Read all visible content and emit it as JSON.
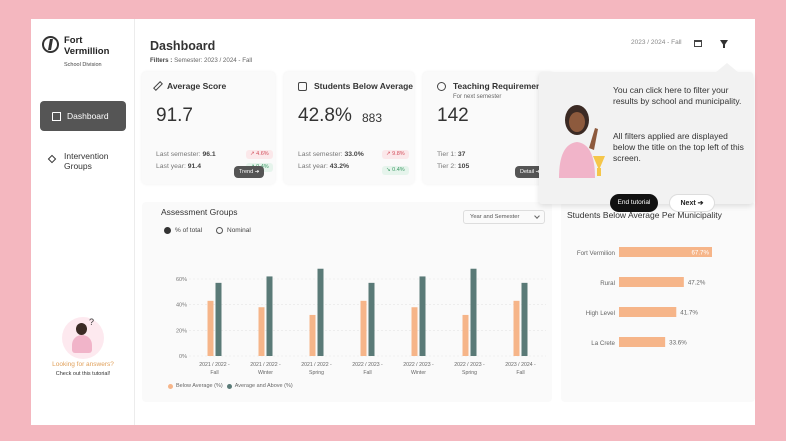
{
  "sidebar": {
    "brand_name": "Fort Vermillion",
    "brand_sub": "School Division",
    "items": [
      {
        "label": "Dashboard",
        "icon": "home-icon",
        "active": true
      },
      {
        "label": "Intervention Groups",
        "icon": "diamond-icon",
        "active": false
      }
    ],
    "help_title": "Looking for answers?",
    "help_sub": "Check out this tutorial!"
  },
  "header": {
    "title": "Dashboard",
    "filters_label": "Filters :",
    "filters_value": "Semester: 2023 / 2024 - Fall",
    "period": "2023 / 2024 - Fall"
  },
  "cards": {
    "avg": {
      "title": "Average Score",
      "value": "91.7",
      "last_sem_label": "Last semester:",
      "last_sem": "96.1",
      "last_sem_delta": "4.6%",
      "last_year_label": "Last year:",
      "last_year": "91.4",
      "last_year_delta": "0.4%",
      "button": "Trend ➔"
    },
    "below": {
      "title": "Students Below Average",
      "value": "42.8%",
      "count": "883",
      "last_sem_label": "Last semester:",
      "last_sem": "33.0%",
      "last_sem_delta": "9.8%",
      "last_year_label": "Last year:",
      "last_year": "43.2%",
      "last_year_delta": "0.4%"
    },
    "teaching": {
      "title": "Teaching Requirement",
      "subtitle": "For next semester",
      "value": "142",
      "tier1_label": "Tier 1:",
      "tier1": "37",
      "tier2_label": "Tier 2:",
      "tier2": "105",
      "button": "Detail ➔"
    }
  },
  "assessment": {
    "title": "Assessment Groups",
    "dropdown": "Year and Semester",
    "radio_on": "% of total",
    "radio_off": "Nominal"
  },
  "municipality": {
    "title": "Students Below Average Per Municipality"
  },
  "tooltip": {
    "text1": "You can click here to filter your results by school and municipality.",
    "text2": "All filters applied are displayed below the title on the top left of this screen.",
    "end_button": "End tutorial",
    "next_button": "Next ➔"
  },
  "colors": {
    "below": "#f6b589",
    "above": "#5a7a77",
    "accent": "#555555"
  },
  "chart_data": [
    {
      "type": "bar",
      "title": "Assessment Groups",
      "categories": [
        "2021 / 2022 - Fall",
        "2021 / 2022 - Winter",
        "2021 / 2022 - Spring",
        "2022 / 2023 - Fall",
        "2022 / 2023 - Winter",
        "2022 / 2023 - Spring",
        "2023 / 2024 - Fall"
      ],
      "yticks": [
        "0%",
        "20%",
        "40%",
        "60%"
      ],
      "ylim": [
        0,
        60
      ],
      "series": [
        {
          "name": "Below Average (%)",
          "values": [
            43,
            38,
            32,
            43,
            38,
            32,
            43
          ]
        },
        {
          "name": "Average and Above (%)",
          "values": [
            57,
            62,
            68,
            57,
            62,
            68,
            57
          ]
        }
      ],
      "legend": "bottom"
    },
    {
      "type": "bar",
      "orientation": "horizontal",
      "title": "Students Below Average Per Municipality",
      "categories": [
        "Fort Vermilion",
        "Rural",
        "High Level",
        "La Crete"
      ],
      "values": [
        67.7,
        47.2,
        41.7,
        33.6
      ],
      "value_labels": [
        "67.7%",
        "47.2%",
        "41.7%",
        "33.6%"
      ]
    }
  ]
}
